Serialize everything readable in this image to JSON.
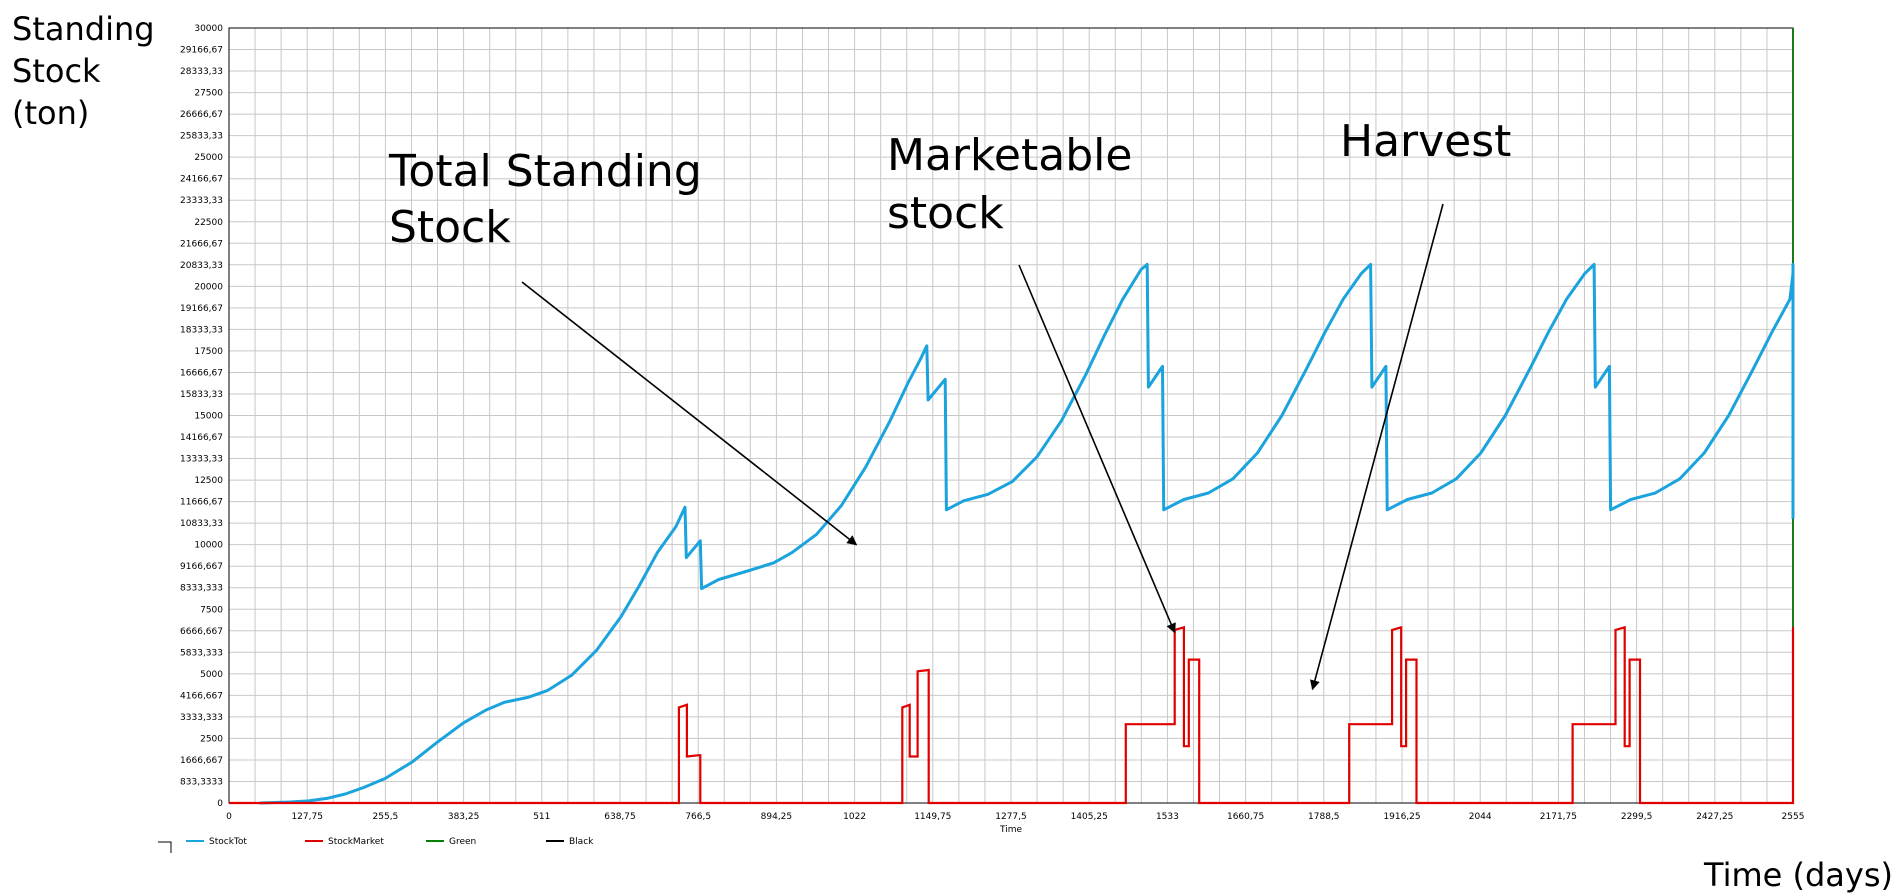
{
  "chart_data": {
    "type": "line",
    "title": "",
    "y_title_lines": [
      "Standing",
      "Stock",
      "(ton)"
    ],
    "x_axis_title": "Time",
    "x_outer_label": "Time (days)",
    "xlim": [
      0,
      2555
    ],
    "ylim": [
      0,
      30000
    ],
    "grid": true,
    "legend_position": "bottom-left",
    "x_ticks": [
      "0",
      "127,75",
      "255,5",
      "383,25",
      "511",
      "638,75",
      "766,5",
      "894,25",
      "1022",
      "1149,75",
      "1277,5",
      "1405,25",
      "1533",
      "1660,75",
      "1788,5",
      "1916,25",
      "2044",
      "2171,75",
      "2299,5",
      "2427,25",
      "2555"
    ],
    "x_tick_values": [
      0,
      127.75,
      255.5,
      383.25,
      511,
      638.75,
      766.5,
      894.25,
      1022,
      1149.75,
      1277.5,
      1405.25,
      1533,
      1660.75,
      1788.5,
      1916.25,
      2044,
      2171.75,
      2299.5,
      2427.25,
      2555
    ],
    "y_ticks": [
      "0",
      "833,3333",
      "1666,667",
      "2500",
      "3333,333",
      "4166,667",
      "5000",
      "5833,333",
      "6666,667",
      "7500",
      "8333,333",
      "9166,667",
      "10000",
      "10833,33",
      "11666,67",
      "12500",
      "13333,33",
      "14166,67",
      "15000",
      "15833,33",
      "16666,67",
      "17500",
      "18333,33",
      "19166,67",
      "20000",
      "20833,33",
      "21666,67",
      "22500",
      "23333,33",
      "24166,67",
      "25000",
      "25833,33",
      "26666,67",
      "27500",
      "28333,33",
      "29166,67",
      "30000"
    ],
    "y_tick_values": [
      0,
      833.3333,
      1666.667,
      2500,
      3333.333,
      4166.667,
      5000,
      5833.333,
      6666.667,
      7500,
      8333.333,
      9166.667,
      10000,
      10833.33,
      11666.67,
      12500,
      13333.33,
      14166.67,
      15000,
      15833.33,
      16666.67,
      17500,
      18333.33,
      19166.67,
      20000,
      20833.33,
      21666.67,
      22500,
      23333.33,
      24166.67,
      25000,
      25833.33,
      26666.67,
      27500,
      28333.33,
      29166.67,
      30000
    ],
    "legend": [
      {
        "name": "StockTot",
        "color": "#1aa3dd"
      },
      {
        "name": "StockMarket",
        "color": "#e00000"
      },
      {
        "name": "Green",
        "color": "#008000"
      },
      {
        "name": "Black",
        "color": "#000000"
      }
    ],
    "series": [
      {
        "name": "StockTot",
        "color": "#1aa3dd",
        "points": [
          [
            50,
            0
          ],
          [
            100,
            40
          ],
          [
            130,
            80
          ],
          [
            160,
            180
          ],
          [
            190,
            350
          ],
          [
            220,
            600
          ],
          [
            255,
            950
          ],
          [
            300,
            1600
          ],
          [
            340,
            2350
          ],
          [
            383,
            3100
          ],
          [
            420,
            3600
          ],
          [
            450,
            3900
          ],
          [
            490,
            4100
          ],
          [
            520,
            4350
          ],
          [
            560,
            4950
          ],
          [
            600,
            5900
          ],
          [
            640,
            7200
          ],
          [
            670,
            8400
          ],
          [
            700,
            9700
          ],
          [
            730,
            10700
          ],
          [
            745,
            11450
          ],
          [
            747,
            9500
          ],
          [
            770,
            10150
          ],
          [
            772,
            8300
          ],
          [
            800,
            8650
          ],
          [
            850,
            9000
          ],
          [
            890,
            9300
          ],
          [
            920,
            9700
          ],
          [
            960,
            10400
          ],
          [
            1000,
            11500
          ],
          [
            1040,
            13000
          ],
          [
            1080,
            14800
          ],
          [
            1110,
            16300
          ],
          [
            1130,
            17200
          ],
          [
            1140,
            17700
          ],
          [
            1142,
            15600
          ],
          [
            1170,
            16400
          ],
          [
            1172,
            11350
          ],
          [
            1200,
            11700
          ],
          [
            1240,
            11950
          ],
          [
            1280,
            12450
          ],
          [
            1320,
            13400
          ],
          [
            1360,
            14800
          ],
          [
            1400,
            16600
          ],
          [
            1430,
            18100
          ],
          [
            1460,
            19500
          ],
          [
            1490,
            20650
          ],
          [
            1500,
            20850
          ],
          [
            1502,
            16100
          ],
          [
            1525,
            16900
          ],
          [
            1527,
            11350
          ],
          [
            1560,
            11750
          ],
          [
            1600,
            12000
          ],
          [
            1640,
            12550
          ],
          [
            1680,
            13550
          ],
          [
            1720,
            15000
          ],
          [
            1760,
            16800
          ],
          [
            1790,
            18200
          ],
          [
            1820,
            19500
          ],
          [
            1850,
            20500
          ],
          [
            1865,
            20850
          ],
          [
            1867,
            16100
          ],
          [
            1890,
            16900
          ],
          [
            1892,
            11350
          ],
          [
            1925,
            11750
          ],
          [
            1965,
            12000
          ],
          [
            2005,
            12550
          ],
          [
            2045,
            13550
          ],
          [
            2085,
            15000
          ],
          [
            2125,
            16800
          ],
          [
            2155,
            18200
          ],
          [
            2185,
            19500
          ],
          [
            2215,
            20500
          ],
          [
            2230,
            20850
          ],
          [
            2232,
            16100
          ],
          [
            2255,
            16900
          ],
          [
            2257,
            11350
          ],
          [
            2290,
            11750
          ],
          [
            2330,
            12000
          ],
          [
            2370,
            12550
          ],
          [
            2410,
            13550
          ],
          [
            2450,
            15000
          ],
          [
            2490,
            16800
          ],
          [
            2520,
            18200
          ],
          [
            2550,
            19500
          ],
          [
            2580,
            20500
          ],
          [
            2595,
            20850
          ],
          [
            2597,
            16100
          ],
          [
            2620,
            16900
          ],
          [
            2622,
            11000
          ]
        ]
      },
      {
        "name": "StockMarket",
        "color": "#e00000",
        "points": [
          [
            0,
            0
          ],
          [
            735,
            0
          ],
          [
            735,
            3700
          ],
          [
            748,
            3800
          ],
          [
            748,
            1800
          ],
          [
            768,
            1850
          ],
          [
            770,
            1850
          ],
          [
            770,
            0
          ],
          [
            1100,
            0
          ],
          [
            1100,
            3700
          ],
          [
            1112,
            3800
          ],
          [
            1112,
            1800
          ],
          [
            1125,
            1800
          ],
          [
            1125,
            5100
          ],
          [
            1143,
            5150
          ],
          [
            1143,
            0
          ],
          [
            1465,
            0
          ],
          [
            1465,
            3050
          ],
          [
            1545,
            3050
          ],
          [
            1545,
            6700
          ],
          [
            1560,
            6800
          ],
          [
            1560,
            2200
          ],
          [
            1568,
            2200
          ],
          [
            1568,
            5550
          ],
          [
            1585,
            5550
          ],
          [
            1585,
            0
          ],
          [
            1830,
            0
          ],
          [
            1830,
            3050
          ],
          [
            1900,
            3050
          ],
          [
            1900,
            6700
          ],
          [
            1915,
            6800
          ],
          [
            1915,
            2200
          ],
          [
            1923,
            2200
          ],
          [
            1923,
            5550
          ],
          [
            1940,
            5550
          ],
          [
            1940,
            0
          ],
          [
            2195,
            0
          ],
          [
            2195,
            3050
          ],
          [
            2265,
            3050
          ],
          [
            2265,
            6700
          ],
          [
            2280,
            6800
          ],
          [
            2280,
            2200
          ],
          [
            2288,
            2200
          ],
          [
            2288,
            5550
          ],
          [
            2305,
            5550
          ],
          [
            2305,
            0
          ],
          [
            2560,
            0
          ],
          [
            2560,
            3050
          ],
          [
            2630,
            3050
          ],
          [
            2630,
            6700
          ],
          [
            2645,
            6800
          ],
          [
            2645,
            2200
          ],
          [
            2653,
            2200
          ],
          [
            2653,
            5550
          ],
          [
            2670,
            5550
          ],
          [
            2670,
            0
          ]
        ]
      }
    ],
    "annotations": [
      {
        "id": "anno-total",
        "lines": [
          "Total Standing",
          "Stock"
        ],
        "target_data": [
          1025,
          10000
        ]
      },
      {
        "id": "anno-market",
        "lines": [
          "Marketable",
          "stock"
        ],
        "target_data": [
          1545,
          6600
        ]
      },
      {
        "id": "anno-harvest",
        "lines": [
          "Harvest"
        ],
        "target_data": [
          1770,
          4400
        ]
      }
    ]
  }
}
